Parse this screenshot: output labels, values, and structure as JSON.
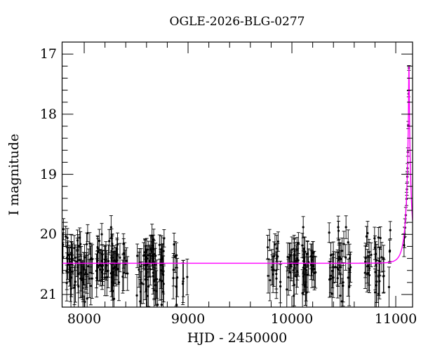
{
  "figure": {
    "title": "OGLE-2026-BLG-0277",
    "xlabel": "HJD - 2450000",
    "ylabel": "I magnitude"
  },
  "chart_data": {
    "type": "scatter",
    "title": "OGLE-2026-BLG-0277",
    "xlabel": "HJD - 2450000",
    "ylabel": "I magnitude",
    "xlim": [
      7787,
      11162
    ],
    "ylim": [
      21.21,
      16.8
    ],
    "y_axis_inverted": true,
    "grid": false,
    "x_major_ticks": [
      8000,
      9000,
      10000,
      11000
    ],
    "x_tick_labels": [
      "8000",
      "9000",
      "10000",
      "11000"
    ],
    "x_minor_step": 200,
    "y_major_ticks": [
      17,
      18,
      19,
      20,
      21
    ],
    "y_tick_labels": [
      "17",
      "18",
      "19",
      "20",
      "21"
    ],
    "y_minor_step": 0.2,
    "point_color": "#000000",
    "model_color": "#ff00ff",
    "model_curve": {
      "type": "paczynski-microlensing",
      "baseline_I_mag": 20.48,
      "t0_hjd": 11127,
      "tE_days": 60,
      "u0": 0.0485,
      "peak_I_mag": 17.19
    },
    "observing_seasons": [
      {
        "hjd_start": 7790,
        "hjd_end": 8080,
        "n_points": 65,
        "mag_mean": 20.53,
        "mag_scatter": 0.27,
        "err_base": 0.14
      },
      {
        "hjd_start": 8115,
        "hjd_end": 8420,
        "n_points": 62,
        "mag_mean": 20.5,
        "mag_scatter": 0.27,
        "err_base": 0.14
      },
      {
        "hjd_start": 8495,
        "hjd_end": 8770,
        "n_points": 66,
        "mag_mean": 20.5,
        "mag_scatter": 0.28,
        "err_base": 0.14
      },
      {
        "hjd_start": 8858,
        "hjd_end": 8995,
        "n_points": 12,
        "mag_mean": 20.58,
        "mag_scatter": 0.3,
        "err_base": 0.15
      },
      {
        "hjd_start": 9757,
        "hjd_end": 9900,
        "n_points": 18,
        "mag_mean": 20.47,
        "mag_scatter": 0.28,
        "err_base": 0.14
      },
      {
        "hjd_start": 9946,
        "hjd_end": 10065,
        "n_points": 26,
        "mag_mean": 20.5,
        "mag_scatter": 0.27,
        "err_base": 0.14
      },
      {
        "hjd_start": 10080,
        "hjd_end": 10230,
        "n_points": 30,
        "mag_mean": 20.5,
        "mag_scatter": 0.28,
        "err_base": 0.14
      },
      {
        "hjd_start": 10345,
        "hjd_end": 10570,
        "n_points": 36,
        "mag_mean": 20.5,
        "mag_scatter": 0.28,
        "err_base": 0.14
      },
      {
        "hjd_start": 10700,
        "hjd_end": 10950,
        "n_points": 36,
        "mag_mean": 20.46,
        "mag_scatter": 0.27,
        "err_base": 0.14
      }
    ],
    "rise_points": [
      {
        "hjd": 11127.0,
        "mag": 17.23,
        "err": 0.04
      },
      {
        "hjd": 11123.6,
        "mag": 17.66,
        "err": 0.05
      },
      {
        "hjd": 11120.4,
        "mag": 18.18,
        "err": 0.06
      },
      {
        "hjd": 11116.4,
        "mag": 18.63,
        "err": 0.07
      },
      {
        "hjd": 11113.2,
        "mag": 18.9,
        "err": 0.08
      },
      {
        "hjd": 11111.2,
        "mag": 19.04,
        "err": 0.09
      },
      {
        "hjd": 11107.4,
        "mag": 19.25,
        "err": 0.1
      },
      {
        "hjd": 11104.0,
        "mag": 19.41,
        "err": 0.11
      },
      {
        "hjd": 11096.3,
        "mag": 19.68,
        "err": 0.13
      },
      {
        "hjd": 11088.9,
        "mag": 19.89,
        "err": 0.15
      },
      {
        "hjd": 11084.1,
        "mag": 20.05,
        "err": 0.17
      },
      {
        "hjd": 11080.0,
        "mag": 20.18,
        "err": 0.19
      }
    ]
  }
}
